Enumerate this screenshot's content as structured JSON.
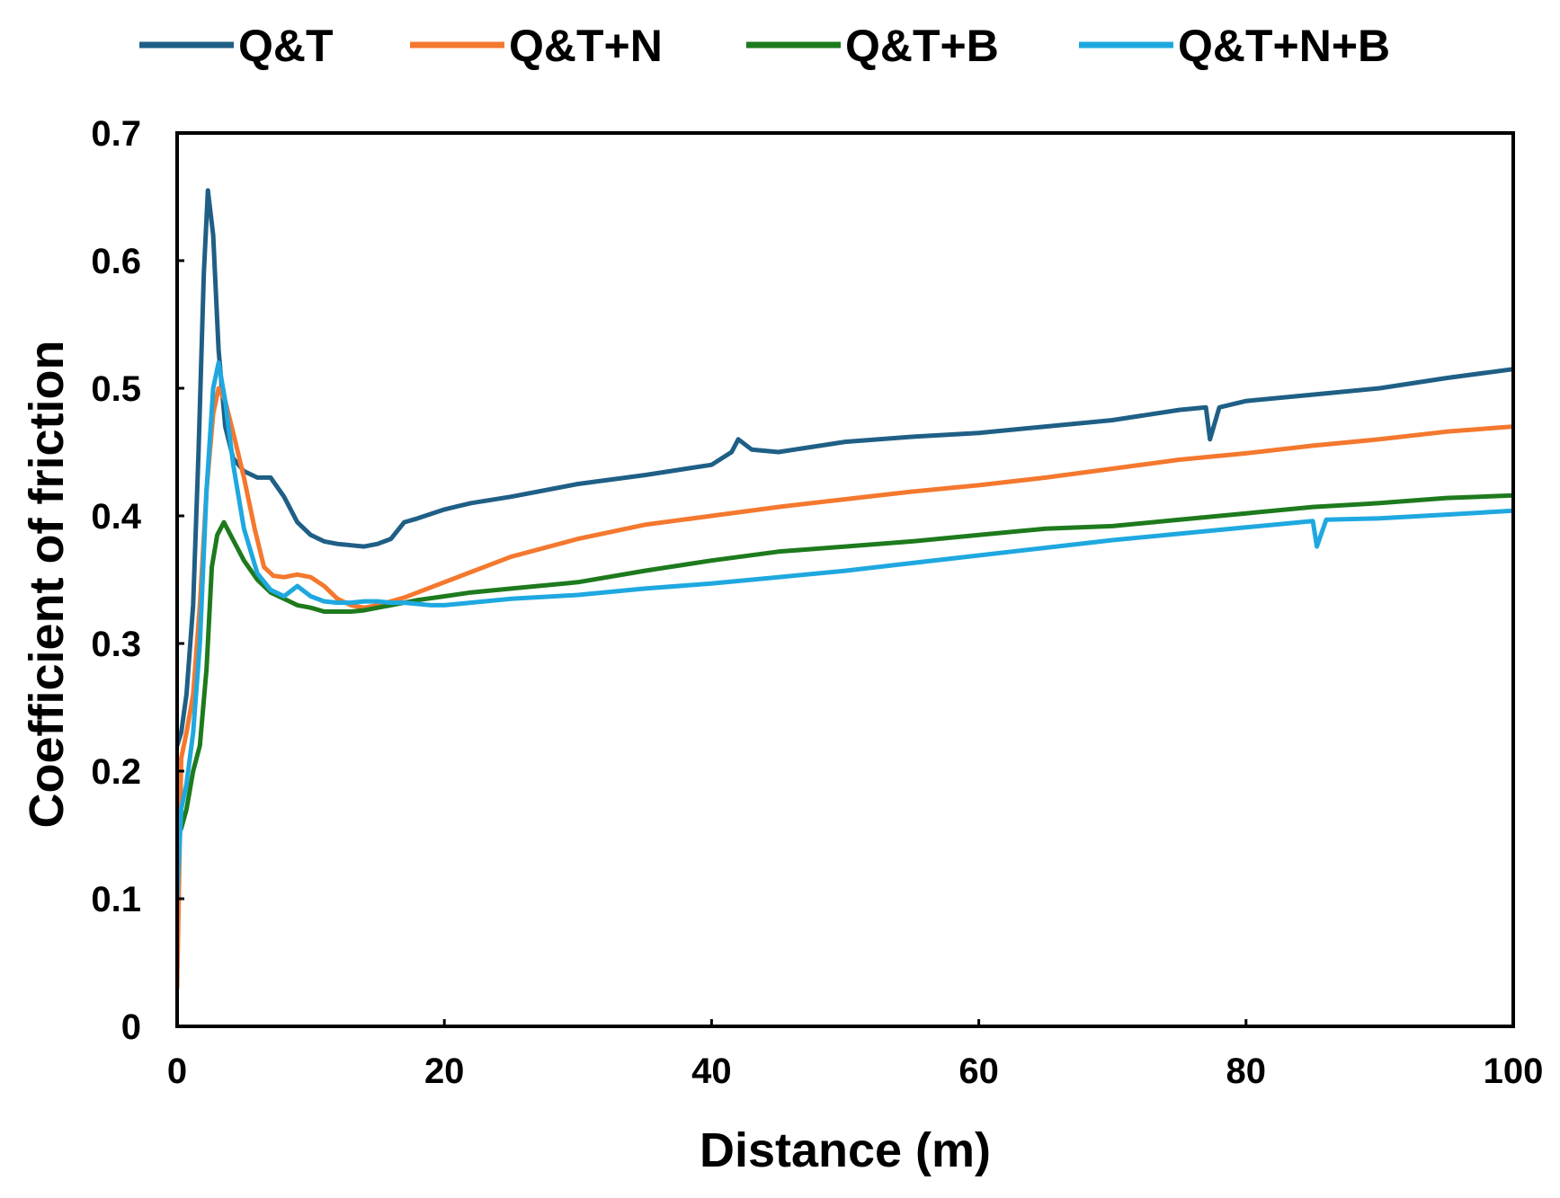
{
  "chart_data": {
    "type": "line",
    "title": "",
    "xlabel": "Distance (m)",
    "ylabel": "Coefficient of friction",
    "xlim": [
      0,
      100
    ],
    "ylim": [
      0,
      0.7
    ],
    "xticks": [
      0,
      20,
      40,
      60,
      80,
      100
    ],
    "xtick_labels": [
      "0",
      "20",
      "40",
      "60",
      "80",
      "100"
    ],
    "yticks": [
      0,
      0.1,
      0.2,
      0.3,
      0.4,
      0.5,
      0.6,
      0.7
    ],
    "ytick_labels": [
      "0",
      "0.1",
      "0.2",
      "0.3",
      "0.4",
      "0.5",
      "0.6",
      "0.7"
    ],
    "grid": false,
    "legend_position": "top",
    "series": [
      {
        "name": "Q&T",
        "color": "#1f5f86",
        "x": [
          0,
          0.3,
          0.7,
          1.2,
          1.6,
          2.0,
          2.3,
          2.7,
          3.1,
          3.6,
          4.2,
          5.0,
          6.0,
          7.0,
          8.0,
          9.0,
          10.0,
          11.0,
          12.0,
          13.0,
          14.0,
          15.0,
          16.0,
          17.0,
          18.0,
          20.0,
          22.0,
          25.0,
          30.0,
          35.0,
          40.0,
          41.5,
          42.0,
          43.0,
          45.0,
          50.0,
          55.0,
          60.0,
          65.0,
          70.0,
          75.0,
          77.0,
          77.3,
          78.0,
          80.0,
          85.0,
          90.0,
          95.0,
          100.0
        ],
        "y": [
          0.22,
          0.23,
          0.26,
          0.33,
          0.45,
          0.59,
          0.655,
          0.62,
          0.53,
          0.47,
          0.445,
          0.435,
          0.43,
          0.43,
          0.415,
          0.395,
          0.385,
          0.38,
          0.378,
          0.377,
          0.376,
          0.378,
          0.382,
          0.395,
          0.398,
          0.405,
          0.41,
          0.415,
          0.425,
          0.432,
          0.44,
          0.45,
          0.46,
          0.452,
          0.45,
          0.458,
          0.462,
          0.465,
          0.47,
          0.475,
          0.483,
          0.485,
          0.46,
          0.485,
          0.49,
          0.495,
          0.5,
          0.508,
          0.515
        ]
      },
      {
        "name": "Q&T+N",
        "color": "#f4782e",
        "x": [
          0,
          0.3,
          0.7,
          1.2,
          1.7,
          2.2,
          2.7,
          3.1,
          3.6,
          4.2,
          5.0,
          5.8,
          6.5,
          7.2,
          8.0,
          9.0,
          10.0,
          11.0,
          12.0,
          13.0,
          14.0,
          15.0,
          16.0,
          17.0,
          18.0,
          20.0,
          25.0,
          30.0,
          35.0,
          40.0,
          45.0,
          50.0,
          55.0,
          60.0,
          65.0,
          70.0,
          75.0,
          80.0,
          85.0,
          90.0,
          95.0,
          100.0
        ],
        "y": [
          0.03,
          0.21,
          0.23,
          0.26,
          0.33,
          0.42,
          0.48,
          0.5,
          0.49,
          0.465,
          0.43,
          0.39,
          0.36,
          0.353,
          0.352,
          0.354,
          0.352,
          0.345,
          0.335,
          0.33,
          0.328,
          0.33,
          0.333,
          0.336,
          0.34,
          0.348,
          0.368,
          0.382,
          0.393,
          0.4,
          0.407,
          0.413,
          0.419,
          0.424,
          0.43,
          0.437,
          0.444,
          0.449,
          0.455,
          0.46,
          0.466,
          0.47
        ]
      },
      {
        "name": "Q&T+B",
        "color": "#1d7a1d",
        "x": [
          0,
          0.3,
          0.7,
          1.2,
          1.7,
          2.2,
          2.6,
          3.0,
          3.5,
          4.0,
          4.5,
          5.0,
          6.0,
          7.0,
          8.0,
          9.0,
          10.0,
          11.0,
          12.0,
          13.0,
          14.0,
          15.0,
          16.0,
          17.0,
          18.0,
          20.0,
          22.0,
          25.0,
          30.0,
          35.0,
          40.0,
          45.0,
          50.0,
          55.0,
          60.0,
          65.0,
          70.0,
          75.0,
          80.0,
          85.0,
          90.0,
          95.0,
          100.0
        ],
        "y": [
          0.15,
          0.155,
          0.17,
          0.2,
          0.22,
          0.28,
          0.36,
          0.385,
          0.395,
          0.385,
          0.375,
          0.365,
          0.35,
          0.34,
          0.335,
          0.33,
          0.328,
          0.325,
          0.325,
          0.325,
          0.326,
          0.328,
          0.33,
          0.332,
          0.334,
          0.337,
          0.34,
          0.343,
          0.348,
          0.357,
          0.365,
          0.372,
          0.376,
          0.38,
          0.385,
          0.39,
          0.392,
          0.397,
          0.402,
          0.407,
          0.41,
          0.414,
          0.416
        ]
      },
      {
        "name": "Q&T+N+B",
        "color": "#1fa8e0",
        "x": [
          0,
          0.3,
          0.7,
          1.2,
          1.7,
          2.2,
          2.7,
          3.1,
          3.6,
          4.2,
          5.0,
          6.0,
          7.0,
          8.0,
          9.0,
          10.0,
          11.0,
          12.0,
          13.0,
          14.0,
          15.0,
          16.0,
          17.0,
          18.0,
          19.0,
          20.0,
          25.0,
          30.0,
          35.0,
          40.0,
          45.0,
          50.0,
          55.0,
          60.0,
          65.0,
          70.0,
          75.0,
          80.0,
          85.0,
          85.3,
          86.0,
          90.0,
          95.0,
          100.0
        ],
        "y": [
          0.1,
          0.17,
          0.19,
          0.23,
          0.3,
          0.42,
          0.5,
          0.52,
          0.49,
          0.44,
          0.39,
          0.355,
          0.342,
          0.337,
          0.345,
          0.337,
          0.333,
          0.332,
          0.332,
          0.333,
          0.333,
          0.332,
          0.332,
          0.331,
          0.33,
          0.33,
          0.335,
          0.338,
          0.343,
          0.347,
          0.352,
          0.357,
          0.363,
          0.369,
          0.375,
          0.381,
          0.386,
          0.391,
          0.396,
          0.376,
          0.397,
          0.398,
          0.401,
          0.404
        ]
      }
    ]
  }
}
